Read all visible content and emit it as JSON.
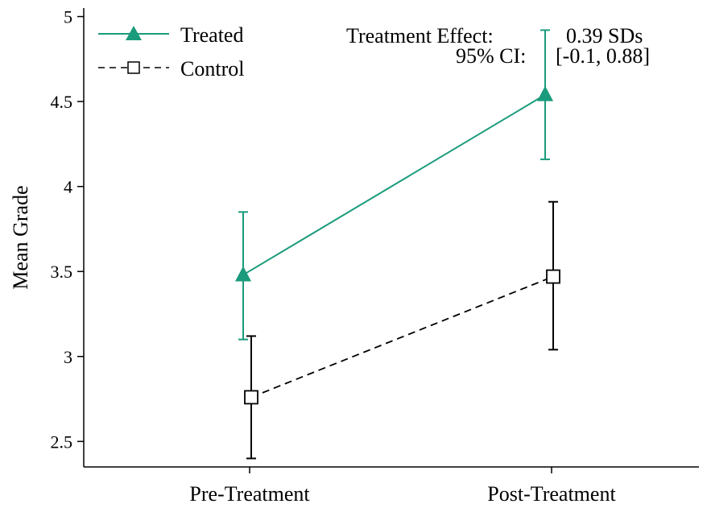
{
  "chart_data": {
    "type": "line",
    "categories": [
      "Pre-Treatment",
      "Post-Treatment"
    ],
    "series": [
      {
        "name": "Treated",
        "values": [
          3.48,
          4.54
        ],
        "ci_low": [
          3.1,
          4.16
        ],
        "ci_high": [
          3.85,
          4.92
        ],
        "color": "#1a9b7b",
        "marker": "triangle",
        "line_style": "solid"
      },
      {
        "name": "Control",
        "values": [
          2.76,
          3.47
        ],
        "ci_low": [
          2.4,
          3.04
        ],
        "ci_high": [
          3.12,
          3.91
        ],
        "color": "#000000",
        "marker": "square-open",
        "line_style": "dashed"
      }
    ],
    "ylabel": "Mean Grade",
    "ylim": [
      2.35,
      5.05
    ],
    "yticks": [
      2.5,
      3,
      3.5,
      4,
      4.5,
      5
    ],
    "ytick_labels": [
      "2.5",
      "3",
      "3.5",
      "4",
      "4.5",
      "5"
    ],
    "grid": false,
    "legend": "top-left",
    "annotations": [
      {
        "label": "Treatment Effect:",
        "value": "0.39 SDs"
      },
      {
        "label": "95% CI:",
        "value": "[-0.1, 0.88]"
      }
    ]
  }
}
